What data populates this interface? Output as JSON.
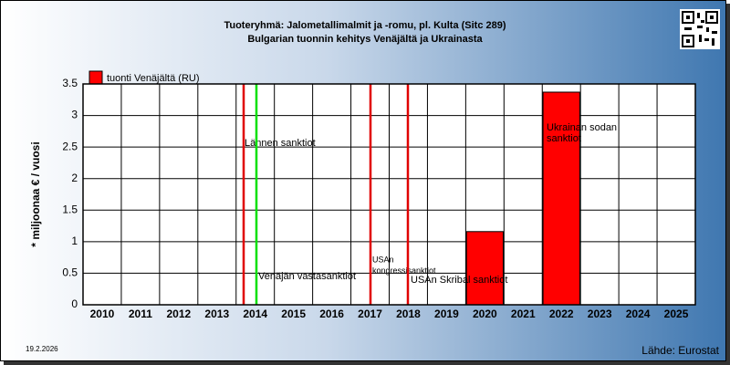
{
  "chart_data": {
    "type": "bar",
    "title": "Tuoteryhmä: Jalometallimalmit ja -romu, pl. Kulta (Sitc 289)",
    "subtitle": "Bulgarian tuonnin kehitys  Venäjältä ja Ukrainasta",
    "y_label": "* miljoonaa € / vuosi",
    "categories": [
      "2010",
      "2011",
      "2012",
      "2013",
      "2014",
      "2015",
      "2016",
      "2017",
      "2018",
      "2019",
      "2020",
      "2021",
      "2022",
      "2023",
      "2024",
      "2025"
    ],
    "series": [
      {
        "name": "tuonti Venäjältä (RU)",
        "color": "#ff0000",
        "values": [
          0,
          0,
          0,
          0,
          0,
          0,
          0,
          0,
          0,
          0,
          1.16,
          0,
          3.37,
          0,
          0,
          0
        ]
      }
    ],
    "ylim": [
      0,
      3.5
    ],
    "yticks": [
      0,
      0.5,
      1,
      1.5,
      2,
      2.5,
      3,
      3.5
    ],
    "grid": true,
    "annotations": [
      {
        "text": [
          "Lännen sanktiot"
        ],
        "color": "#e00000"
      },
      {
        "text": [
          "Venäjän vastasanktiot"
        ],
        "color": "#00e000"
      },
      {
        "text": [
          "USAn",
          "kongressisanktiot"
        ],
        "color": "#e00000"
      },
      {
        "text": [
          "USAn Skribal sanktiot"
        ],
        "color": "#e00000"
      },
      {
        "text": [
          "Ukrainan sodan",
          "sanktiot"
        ],
        "color": null
      }
    ],
    "date": "19.2.2026",
    "source": "Lähde: Eurostat"
  }
}
